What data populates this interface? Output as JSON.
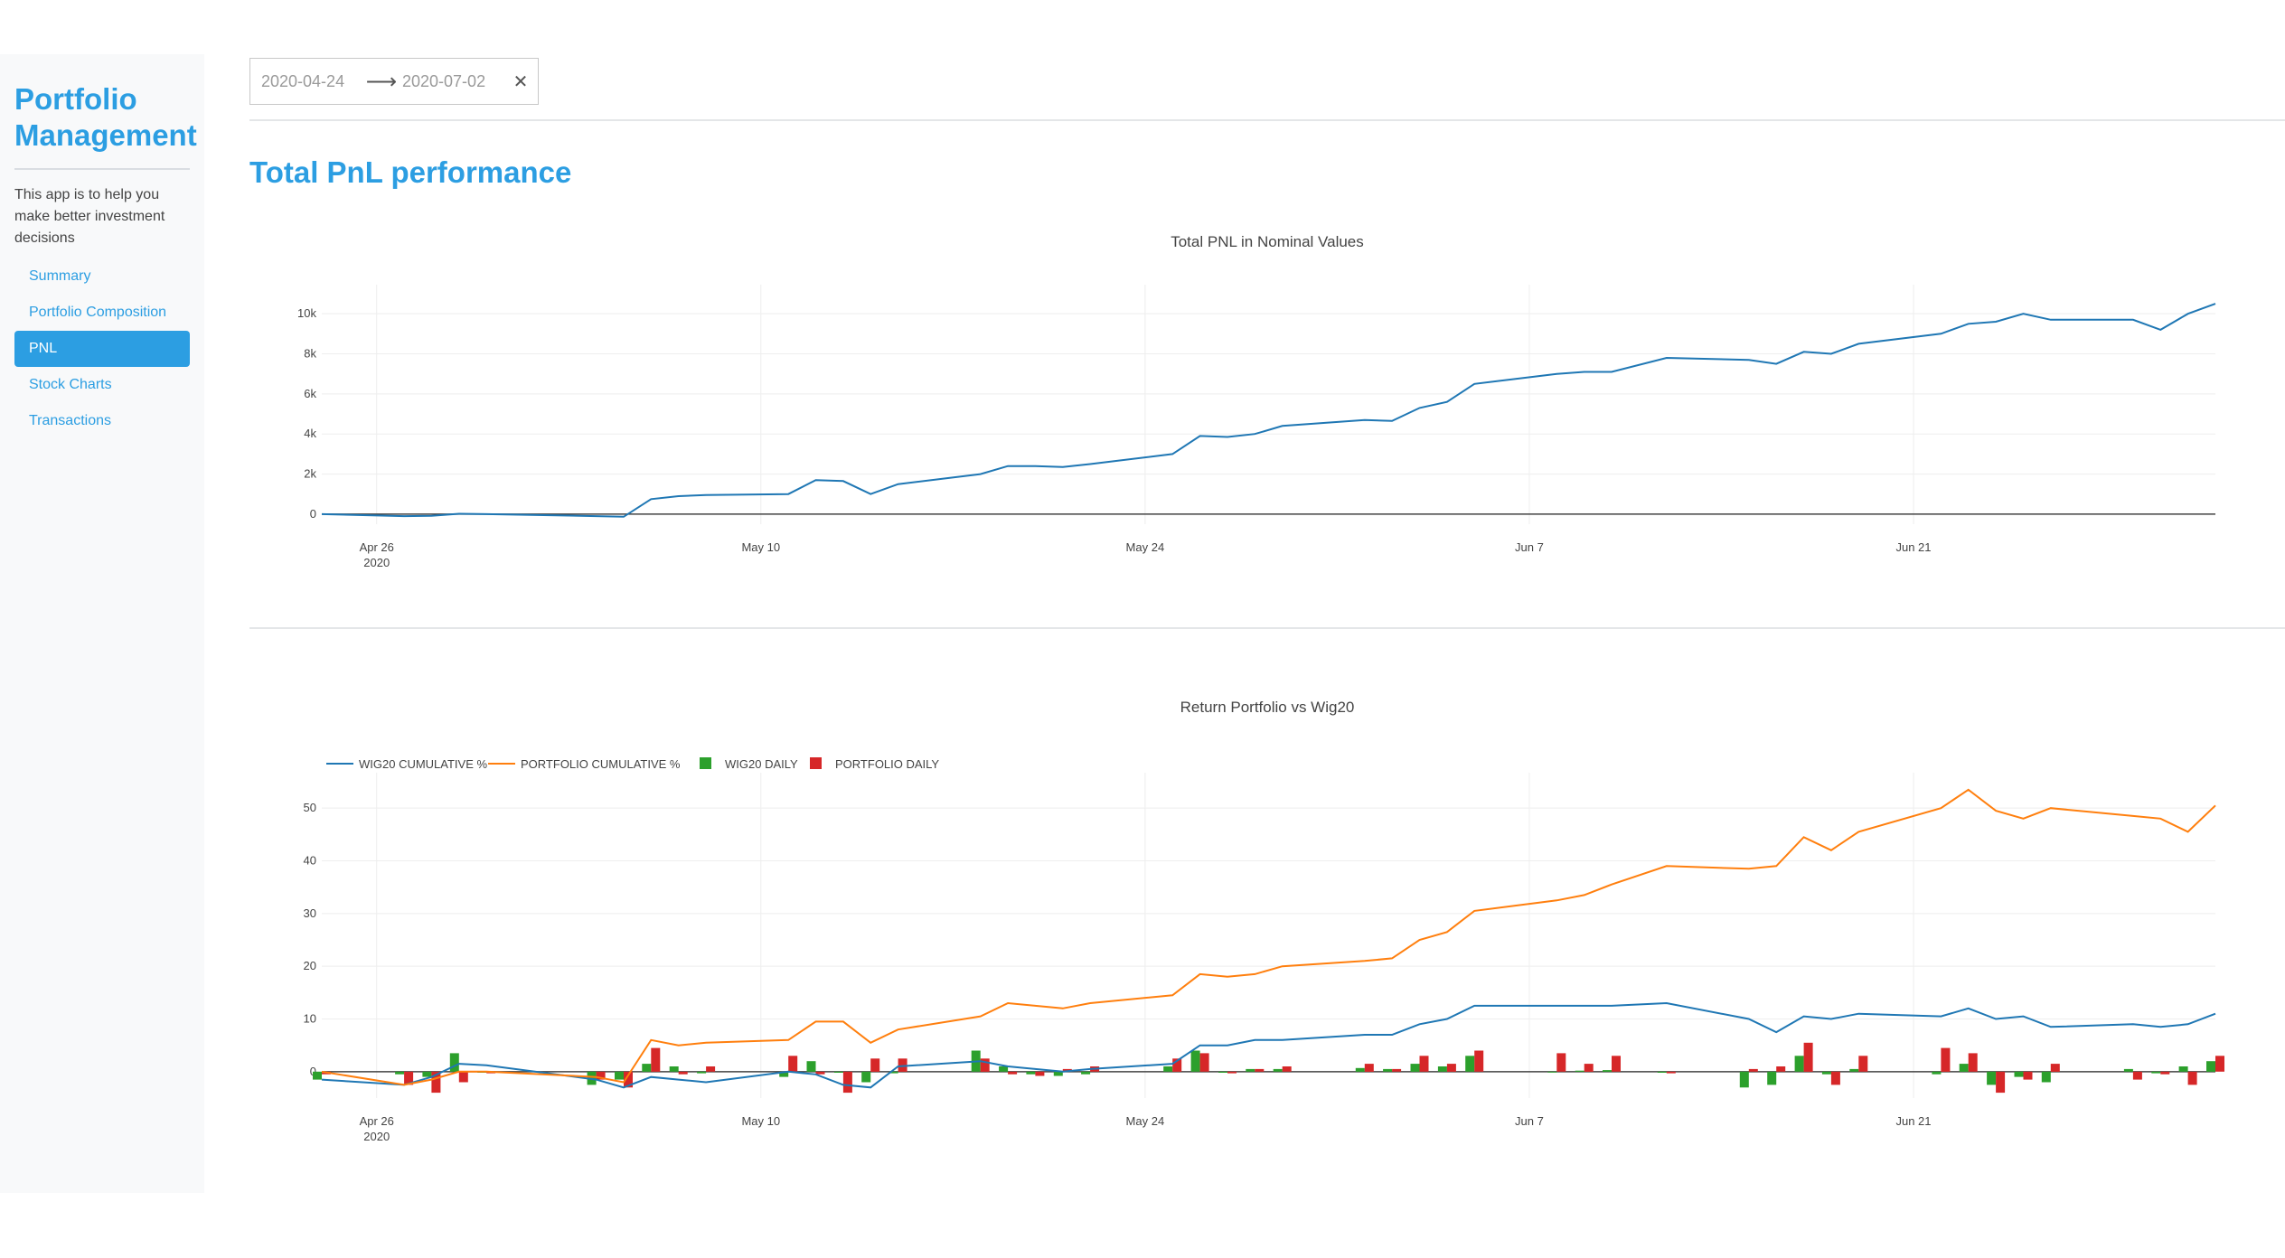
{
  "sidebar": {
    "title_line1": "Portfolio",
    "title_line2": "Management",
    "lead": "This app is to help you make better investment decisions",
    "items": [
      {
        "label": "Summary"
      },
      {
        "label": "Portfolio Composition"
      },
      {
        "label": "PNL"
      },
      {
        "label": "Stock Charts"
      },
      {
        "label": "Transactions"
      }
    ],
    "active_index": 2
  },
  "date_range": {
    "start": "2020-04-24",
    "end": "2020-07-02",
    "arrow_icon": "arrow-right-icon",
    "clear_icon": "close-icon"
  },
  "page_title": "Total PnL performance",
  "colors": {
    "accent": "#2c9ee2",
    "wig20": "#1f77b4",
    "portfolio": "#ff7f0e",
    "wig20_daily": "#2ca02c",
    "portfolio_daily": "#d62728"
  },
  "chart_data": [
    {
      "type": "line",
      "title": "Total PNL in Nominal Values",
      "xlabel": "",
      "ylabel": "",
      "x_range": [
        "2020-04-24",
        "2020-07-02"
      ],
      "ylim": [
        -500,
        11000
      ],
      "y_ticks": [
        0,
        2000,
        4000,
        6000,
        8000,
        10000
      ],
      "y_tick_labels": [
        "0",
        "2k",
        "4k",
        "6k",
        "8k",
        "10k"
      ],
      "x_ticks": [
        "2020-04-26",
        "2020-05-10",
        "2020-05-24",
        "2020-06-07",
        "2020-06-21"
      ],
      "x_tick_labels": [
        "Apr 26",
        "May 10",
        "May 24",
        "Jun 7",
        "Jun 21"
      ],
      "x_tick_sublabel": "2020",
      "grid": true,
      "series": [
        {
          "x": [
            "2020-04-24",
            "2020-04-27",
            "2020-04-28",
            "2020-04-29",
            "2020-04-30",
            "2020-05-04",
            "2020-05-05",
            "2020-05-06",
            "2020-05-07",
            "2020-05-08",
            "2020-05-11",
            "2020-05-12",
            "2020-05-13",
            "2020-05-14",
            "2020-05-15",
            "2020-05-18",
            "2020-05-19",
            "2020-05-20",
            "2020-05-21",
            "2020-05-22",
            "2020-05-25",
            "2020-05-26",
            "2020-05-27",
            "2020-05-28",
            "2020-05-29",
            "2020-06-01",
            "2020-06-02",
            "2020-06-03",
            "2020-06-04",
            "2020-06-05",
            "2020-06-08",
            "2020-06-09",
            "2020-06-10",
            "2020-06-12",
            "2020-06-15",
            "2020-06-16",
            "2020-06-17",
            "2020-06-18",
            "2020-06-19",
            "2020-06-22",
            "2020-06-23",
            "2020-06-24",
            "2020-06-25",
            "2020-06-26",
            "2020-06-29",
            "2020-06-30",
            "2020-07-01",
            "2020-07-02"
          ],
          "values": [
            0,
            -100,
            -80,
            20,
            0,
            -100,
            -130,
            750,
            900,
            950,
            1000,
            1700,
            1650,
            1000,
            1500,
            2000,
            2400,
            2400,
            2350,
            2500,
            3000,
            3900,
            3850,
            4000,
            4400,
            4700,
            4650,
            5300,
            5600,
            6500,
            7000,
            7100,
            7100,
            7800,
            7700,
            7500,
            8100,
            8000,
            8500,
            9000,
            9500,
            9600,
            10000,
            9700,
            9700,
            9200,
            10000,
            10500
          ]
        }
      ]
    },
    {
      "type": "line",
      "title": "Return Portfolio vs Wig20",
      "xlabel": "",
      "ylabel": "",
      "x_range": [
        "2020-04-24",
        "2020-07-02"
      ],
      "ylim": [
        -5,
        55
      ],
      "y_ticks": [
        0,
        10,
        20,
        30,
        40,
        50
      ],
      "y_tick_labels": [
        "0",
        "10",
        "20",
        "30",
        "40",
        "50"
      ],
      "x_ticks": [
        "2020-04-26",
        "2020-05-10",
        "2020-05-24",
        "2020-06-07",
        "2020-06-21"
      ],
      "x_tick_labels": [
        "Apr 26",
        "May 10",
        "May 24",
        "Jun 7",
        "Jun 21"
      ],
      "x_tick_sublabel": "2020",
      "legend_position": "top-left",
      "grid": true,
      "x": [
        "2020-04-24",
        "2020-04-27",
        "2020-04-28",
        "2020-04-29",
        "2020-04-30",
        "2020-05-04",
        "2020-05-05",
        "2020-05-06",
        "2020-05-07",
        "2020-05-08",
        "2020-05-11",
        "2020-05-12",
        "2020-05-13",
        "2020-05-14",
        "2020-05-15",
        "2020-05-18",
        "2020-05-19",
        "2020-05-20",
        "2020-05-21",
        "2020-05-22",
        "2020-05-25",
        "2020-05-26",
        "2020-05-27",
        "2020-05-28",
        "2020-05-29",
        "2020-06-01",
        "2020-06-02",
        "2020-06-03",
        "2020-06-04",
        "2020-06-05",
        "2020-06-08",
        "2020-06-09",
        "2020-06-10",
        "2020-06-12",
        "2020-06-15",
        "2020-06-16",
        "2020-06-17",
        "2020-06-18",
        "2020-06-19",
        "2020-06-22",
        "2020-06-23",
        "2020-06-24",
        "2020-06-25",
        "2020-06-26",
        "2020-06-29",
        "2020-06-30",
        "2020-07-01",
        "2020-07-02"
      ],
      "series": [
        {
          "name": "WIG20 CUMULATIVE %",
          "kind": "line",
          "values": [
            -1.5,
            -2.5,
            -1.0,
            1.5,
            1.2,
            -1.5,
            -3.0,
            -1.0,
            -1.5,
            -2.0,
            0.0,
            -0.5,
            -2.5,
            -3.0,
            1.0,
            2.0,
            1.0,
            0.5,
            0.0,
            0.5,
            1.5,
            5.0,
            5.0,
            6.0,
            6.0,
            7.0,
            7.0,
            9.0,
            10.0,
            12.5,
            12.5,
            12.5,
            12.5,
            13.0,
            10.0,
            7.5,
            10.5,
            10.0,
            11.0,
            10.5,
            12.0,
            10.0,
            10.5,
            8.5,
            9.0,
            8.5,
            9.0,
            11.0
          ]
        },
        {
          "name": "PORTFOLIO CUMULATIVE %",
          "kind": "line",
          "values": [
            0,
            -2.5,
            -1.5,
            0,
            0,
            -1.0,
            -2.0,
            6.0,
            5.0,
            5.5,
            6.0,
            9.5,
            9.5,
            5.5,
            8.0,
            10.5,
            13.0,
            12.5,
            12.0,
            13.0,
            14.5,
            18.5,
            18.0,
            18.5,
            20.0,
            21.0,
            21.5,
            25.0,
            26.5,
            30.5,
            32.5,
            33.5,
            35.5,
            39.0,
            38.5,
            39.0,
            44.5,
            42.0,
            45.5,
            50.0,
            53.5,
            49.5,
            48.0,
            50.0,
            48.5,
            48.0,
            45.5,
            50.5
          ]
        },
        {
          "name": "WIG20 DAILY",
          "kind": "bar",
          "values": [
            -1.5,
            -0.5,
            -1.0,
            3.5,
            -0.2,
            -2.5,
            -1.5,
            1.5,
            1.0,
            -0.3,
            -1.0,
            2.0,
            -0.2,
            -2.0,
            -0.3,
            4.0,
            1.0,
            -0.5,
            -0.8,
            -0.5,
            1.0,
            4.0,
            -0.2,
            0.5,
            0.5,
            0.7,
            0.5,
            1.5,
            1.0,
            3.0,
            -0.1,
            0.2,
            0.3,
            -0.2,
            -3.0,
            -2.5,
            3.0,
            -0.5,
            0.5,
            -0.5,
            1.5,
            -2.5,
            -1.0,
            -2.0,
            0.5,
            -0.3,
            1.0,
            2.0
          ]
        },
        {
          "name": "PORTFOLIO DAILY",
          "kind": "bar",
          "values": [
            -0.5,
            -2.5,
            -4.0,
            -2.0,
            -0.3,
            -1.5,
            -3.0,
            4.5,
            -0.5,
            1.0,
            3.0,
            -0.5,
            -4.0,
            2.5,
            2.5,
            2.5,
            -0.5,
            -0.8,
            0.5,
            1.0,
            2.5,
            3.5,
            -0.3,
            0.5,
            1.0,
            1.5,
            0.5,
            3.0,
            1.5,
            4.0,
            3.5,
            1.5,
            3.0,
            -0.3,
            0.5,
            1.0,
            5.5,
            -2.5,
            3.0,
            4.5,
            3.5,
            -4.0,
            -1.5,
            1.5,
            -1.5,
            -0.5,
            -2.5,
            3.0
          ]
        }
      ]
    }
  ]
}
